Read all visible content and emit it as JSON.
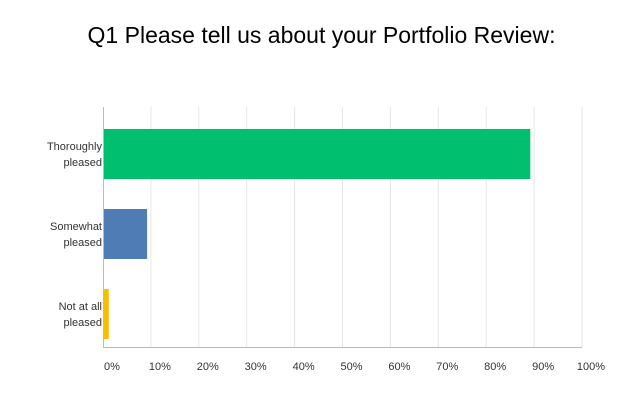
{
  "title": "Q1 Please tell us about your Portfolio Review:",
  "chart_data": {
    "type": "bar",
    "orientation": "horizontal",
    "title": "Q1 Please tell us about your Portfolio Review:",
    "categories": [
      [
        "Thoroughly",
        "pleased"
      ],
      [
        "Somewhat",
        "pleased"
      ],
      [
        "Not at all",
        "pleased"
      ]
    ],
    "values": [
      89,
      9,
      1
    ],
    "colors": [
      "#00bf6f",
      "#507cb6",
      "#f9be00"
    ],
    "xlim": [
      0,
      100
    ],
    "x_ticks": [
      "0%",
      "10%",
      "20%",
      "30%",
      "40%",
      "50%",
      "60%",
      "70%",
      "80%",
      "90%",
      "100%"
    ],
    "grid": true,
    "legend": "none"
  }
}
